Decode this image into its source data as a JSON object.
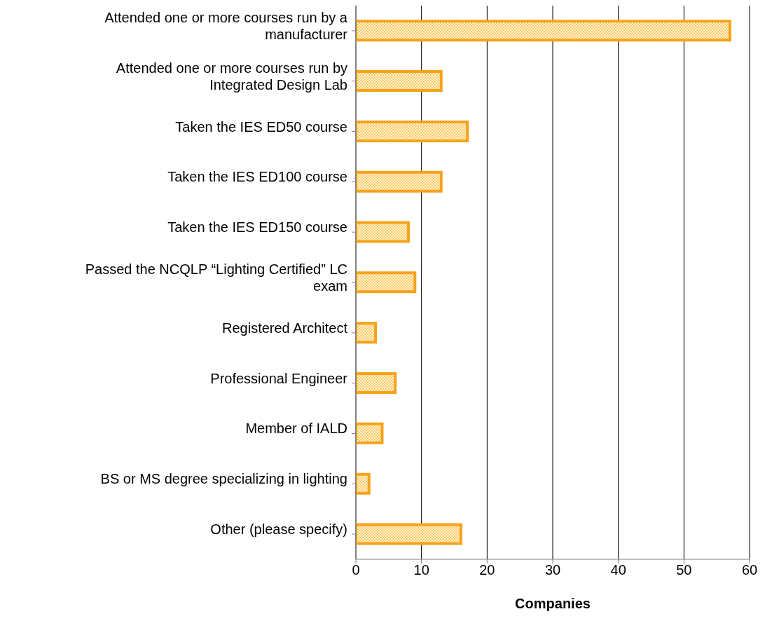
{
  "chart_data": {
    "type": "bar",
    "orientation": "horizontal",
    "xlabel": "Companies",
    "categories": [
      "Attended one or more courses run by a manufacturer",
      "Attended one or more courses run by Integrated Design Lab",
      "Taken the IES ED50 course",
      "Taken the IES ED100 course",
      "Taken the IES ED150 course",
      "Passed the NCQLP “Lighting Certified” LC exam",
      "Registered Architect",
      "Professional Engineer",
      "Member of IALD",
      "BS or MS degree specializing in lighting",
      "Other (please specify)"
    ],
    "values": [
      57,
      13,
      17,
      13,
      8,
      9,
      3,
      6,
      4,
      2,
      16
    ],
    "color": "#f7a21b",
    "xlim": [
      0,
      60
    ],
    "xticks": [
      0,
      10,
      20,
      30,
      40,
      50,
      60
    ],
    "grid": "x"
  }
}
